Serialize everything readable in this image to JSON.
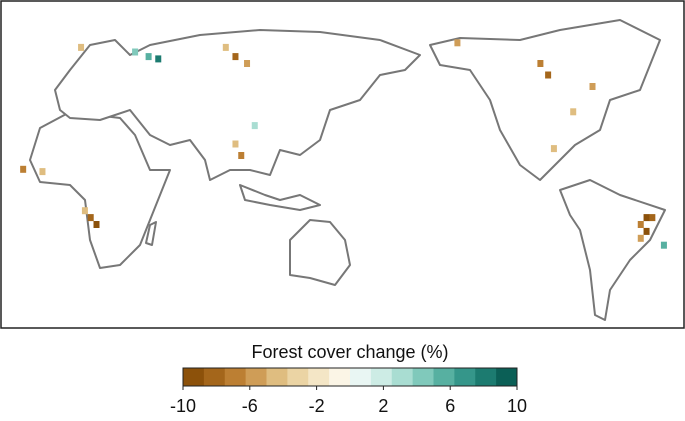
{
  "chart_data": {
    "type": "map",
    "colorbar": {
      "label": "Forest cover change (%)",
      "lim": [
        -10,
        10
      ],
      "ticks": [
        -10,
        -6,
        -2,
        2,
        6,
        10
      ],
      "colors": [
        "#8c510a",
        "#a4661b",
        "#bc7f33",
        "#cf9d57",
        "#dfbd80",
        "#ebd4a4",
        "#f4e6c6",
        "#fbf5e6",
        "#e9f6f3",
        "#cdece5",
        "#a9ddd2",
        "#80c9bb",
        "#57b0a1",
        "#35968a",
        "#1c7b70",
        "#0b5f56"
      ]
    },
    "cells": [
      {
        "lon": 313,
        "lat": -12,
        "value": -9
      },
      {
        "lon": 316,
        "lat": -12,
        "value": -8
      },
      {
        "lon": 310,
        "lat": -15,
        "value": -7
      },
      {
        "lon": 313,
        "lat": -18,
        "value": -9
      },
      {
        "lon": 310,
        "lat": -21,
        "value": -6
      },
      {
        "lon": 322,
        "lat": -24,
        "value": 5
      },
      {
        "lon": 25,
        "lat": -12,
        "value": -8
      },
      {
        "lon": 28,
        "lat": -15,
        "value": -9
      },
      {
        "lon": 22,
        "lat": -9,
        "value": -5
      },
      {
        "lon": -10,
        "lat": 9,
        "value": -7
      },
      {
        "lon": 0,
        "lat": 8,
        "value": -5
      },
      {
        "lon": 55,
        "lat": 58,
        "value": 6
      },
      {
        "lon": 60,
        "lat": 57,
        "value": 8
      },
      {
        "lon": 48,
        "lat": 60,
        "value": 4
      },
      {
        "lon": 100,
        "lat": 58,
        "value": -8
      },
      {
        "lon": 106,
        "lat": 55,
        "value": -6
      },
      {
        "lon": 95,
        "lat": 62,
        "value": -5
      },
      {
        "lon": 103,
        "lat": 15,
        "value": -7
      },
      {
        "lon": 100,
        "lat": 20,
        "value": -5
      },
      {
        "lon": 258,
        "lat": 55,
        "value": -7
      },
      {
        "lon": 262,
        "lat": 50,
        "value": -8
      },
      {
        "lon": 215,
        "lat": 64,
        "value": -6
      },
      {
        "lon": 275,
        "lat": 34,
        "value": -4
      },
      {
        "lon": 285,
        "lat": 45,
        "value": -6
      },
      {
        "lon": 265,
        "lat": 18,
        "value": -4
      },
      {
        "lon": 20,
        "lat": 62,
        "value": -5
      },
      {
        "lon": 110,
        "lat": 28,
        "value": 3
      }
    ]
  }
}
